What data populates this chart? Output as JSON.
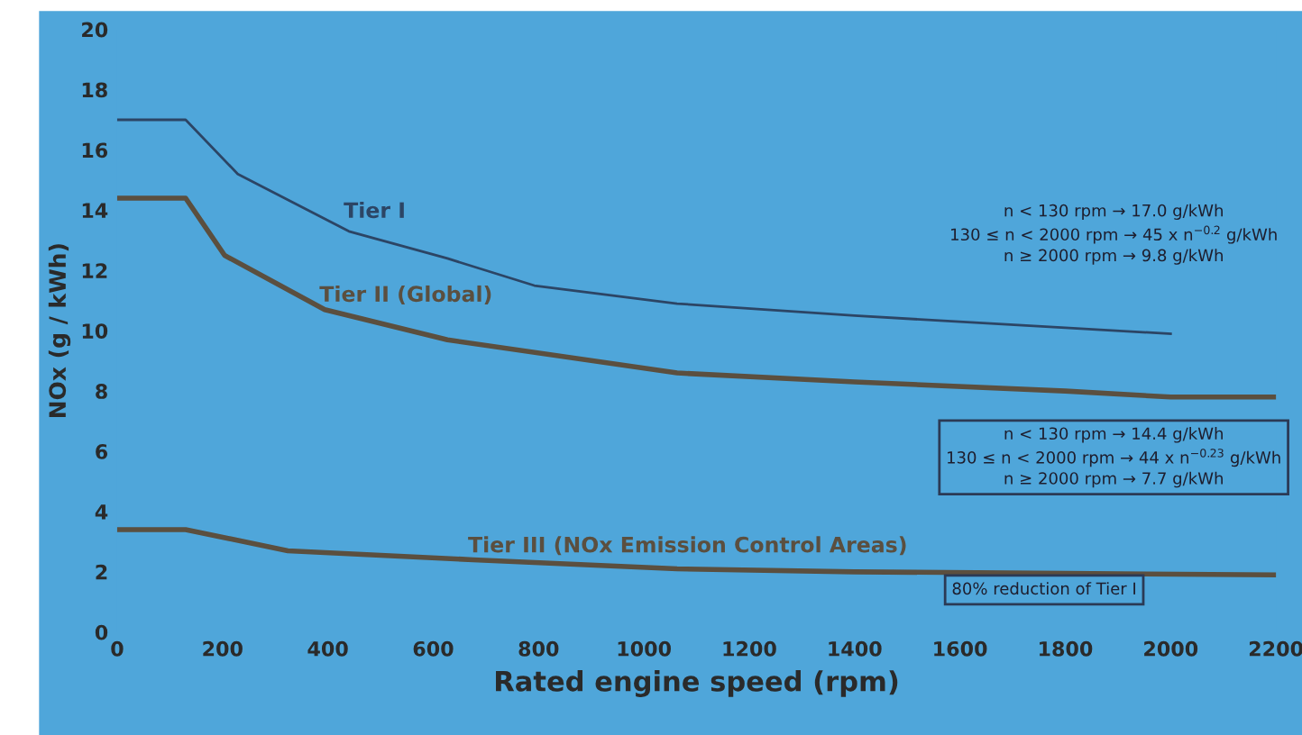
{
  "chart_data": {
    "type": "line",
    "xlabel": "Rated engine speed (rpm)",
    "ylabel": "NOx (g / kWh)",
    "xlim": [
      0,
      2200
    ],
    "xticks": [
      0,
      200,
      400,
      600,
      800,
      1000,
      1200,
      1400,
      1600,
      1800,
      2000,
      2200
    ],
    "ylim": [
      0,
      20
    ],
    "yticks": [
      0,
      2,
      4,
      6,
      8,
      10,
      12,
      14,
      16,
      18,
      20
    ],
    "grid": false,
    "legend": false,
    "marker": "none",
    "line_style": "solid",
    "series": [
      {
        "name": "Tier I",
        "color": "#2c4565",
        "x": [
          0,
          130,
          229,
          440,
          627,
          792,
          1063,
          1400,
          1800,
          2000
        ],
        "values": [
          17.0,
          17.0,
          15.2,
          13.3,
          12.4,
          11.5,
          10.9,
          10.5,
          10.1,
          9.9
        ]
      },
      {
        "name": "Tier II (Global)",
        "color": "#5b4f3f",
        "x": [
          0,
          130,
          204,
          394,
          627,
          1063,
          1400,
          1800,
          2000,
          2200
        ],
        "values": [
          14.4,
          14.4,
          12.5,
          10.7,
          9.7,
          8.6,
          8.3,
          8.0,
          7.8,
          7.8
        ]
      },
      {
        "name": "Tier III (NOx Emission Control Areas)",
        "color": "#5b4f3f",
        "x": [
          0,
          130,
          324,
          676,
          1063,
          1400,
          1800,
          2200
        ],
        "values": [
          3.4,
          3.4,
          2.7,
          2.4,
          2.1,
          2.0,
          1.95,
          1.9
        ]
      }
    ],
    "annotations": [
      "n < 130 rpm → 17.0 g/kWh\n130 ≤ n < 2000 rpm → 45 x n$^{−0.2}$ g/kWh\nn ≥ 2000 rpm → 9.8 g/kWh",
      "n < 130 rpm → 14.4 g/kWh\n130 ≤ n < 2000 rpm → 44 x n$^{−0.23}$ g/kWh\nn ≥ 2000 rpm → 7.7 g/kWh",
      "80% reduction of Tier I"
    ]
  }
}
